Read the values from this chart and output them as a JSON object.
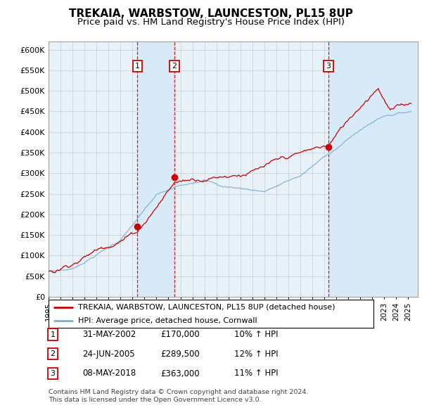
{
  "title": "TREKAIA, WARBSTOW, LAUNCESTON, PL15 8UP",
  "subtitle": "Price paid vs. HM Land Registry's House Price Index (HPI)",
  "title_fontsize": 11,
  "subtitle_fontsize": 9.5,
  "ylabel_ticks": [
    "£0",
    "£50K",
    "£100K",
    "£150K",
    "£200K",
    "£250K",
    "£300K",
    "£350K",
    "£400K",
    "£450K",
    "£500K",
    "£550K",
    "£600K"
  ],
  "ytick_values": [
    0,
    50000,
    100000,
    150000,
    200000,
    250000,
    300000,
    350000,
    400000,
    450000,
    500000,
    550000,
    600000
  ],
  "ylim": [
    0,
    620000
  ],
  "x_start_year": 1995,
  "x_end_year": 2025,
  "sale_ts": [
    2002.42,
    2005.48,
    2018.36
  ],
  "sale_prices": [
    170000,
    289500,
    363000
  ],
  "sale_labels": [
    "1",
    "2",
    "3"
  ],
  "legend_line1": "TREKAIA, WARBSTOW, LAUNCESTON, PL15 8UP (detached house)",
  "legend_line2": "HPI: Average price, detached house, Cornwall",
  "table_data": [
    [
      "1",
      "31-MAY-2002",
      "£170,000",
      "10% ↑ HPI"
    ],
    [
      "2",
      "24-JUN-2005",
      "£289,500",
      "12% ↑ HPI"
    ],
    [
      "3",
      "08-MAY-2018",
      "£363,000",
      "11% ↑ HPI"
    ]
  ],
  "footnote1": "Contains HM Land Registry data © Crown copyright and database right 2024.",
  "footnote2": "This data is licensed under the Open Government Licence v3.0.",
  "property_color": "#cc0000",
  "hpi_color": "#7aafd4",
  "vline_color": "#cc0000",
  "shade_color": "#d8eaf8",
  "plot_bg_color": "#e8f0f8",
  "background_color": "#ffffff",
  "grid_color": "#c8d4e0"
}
